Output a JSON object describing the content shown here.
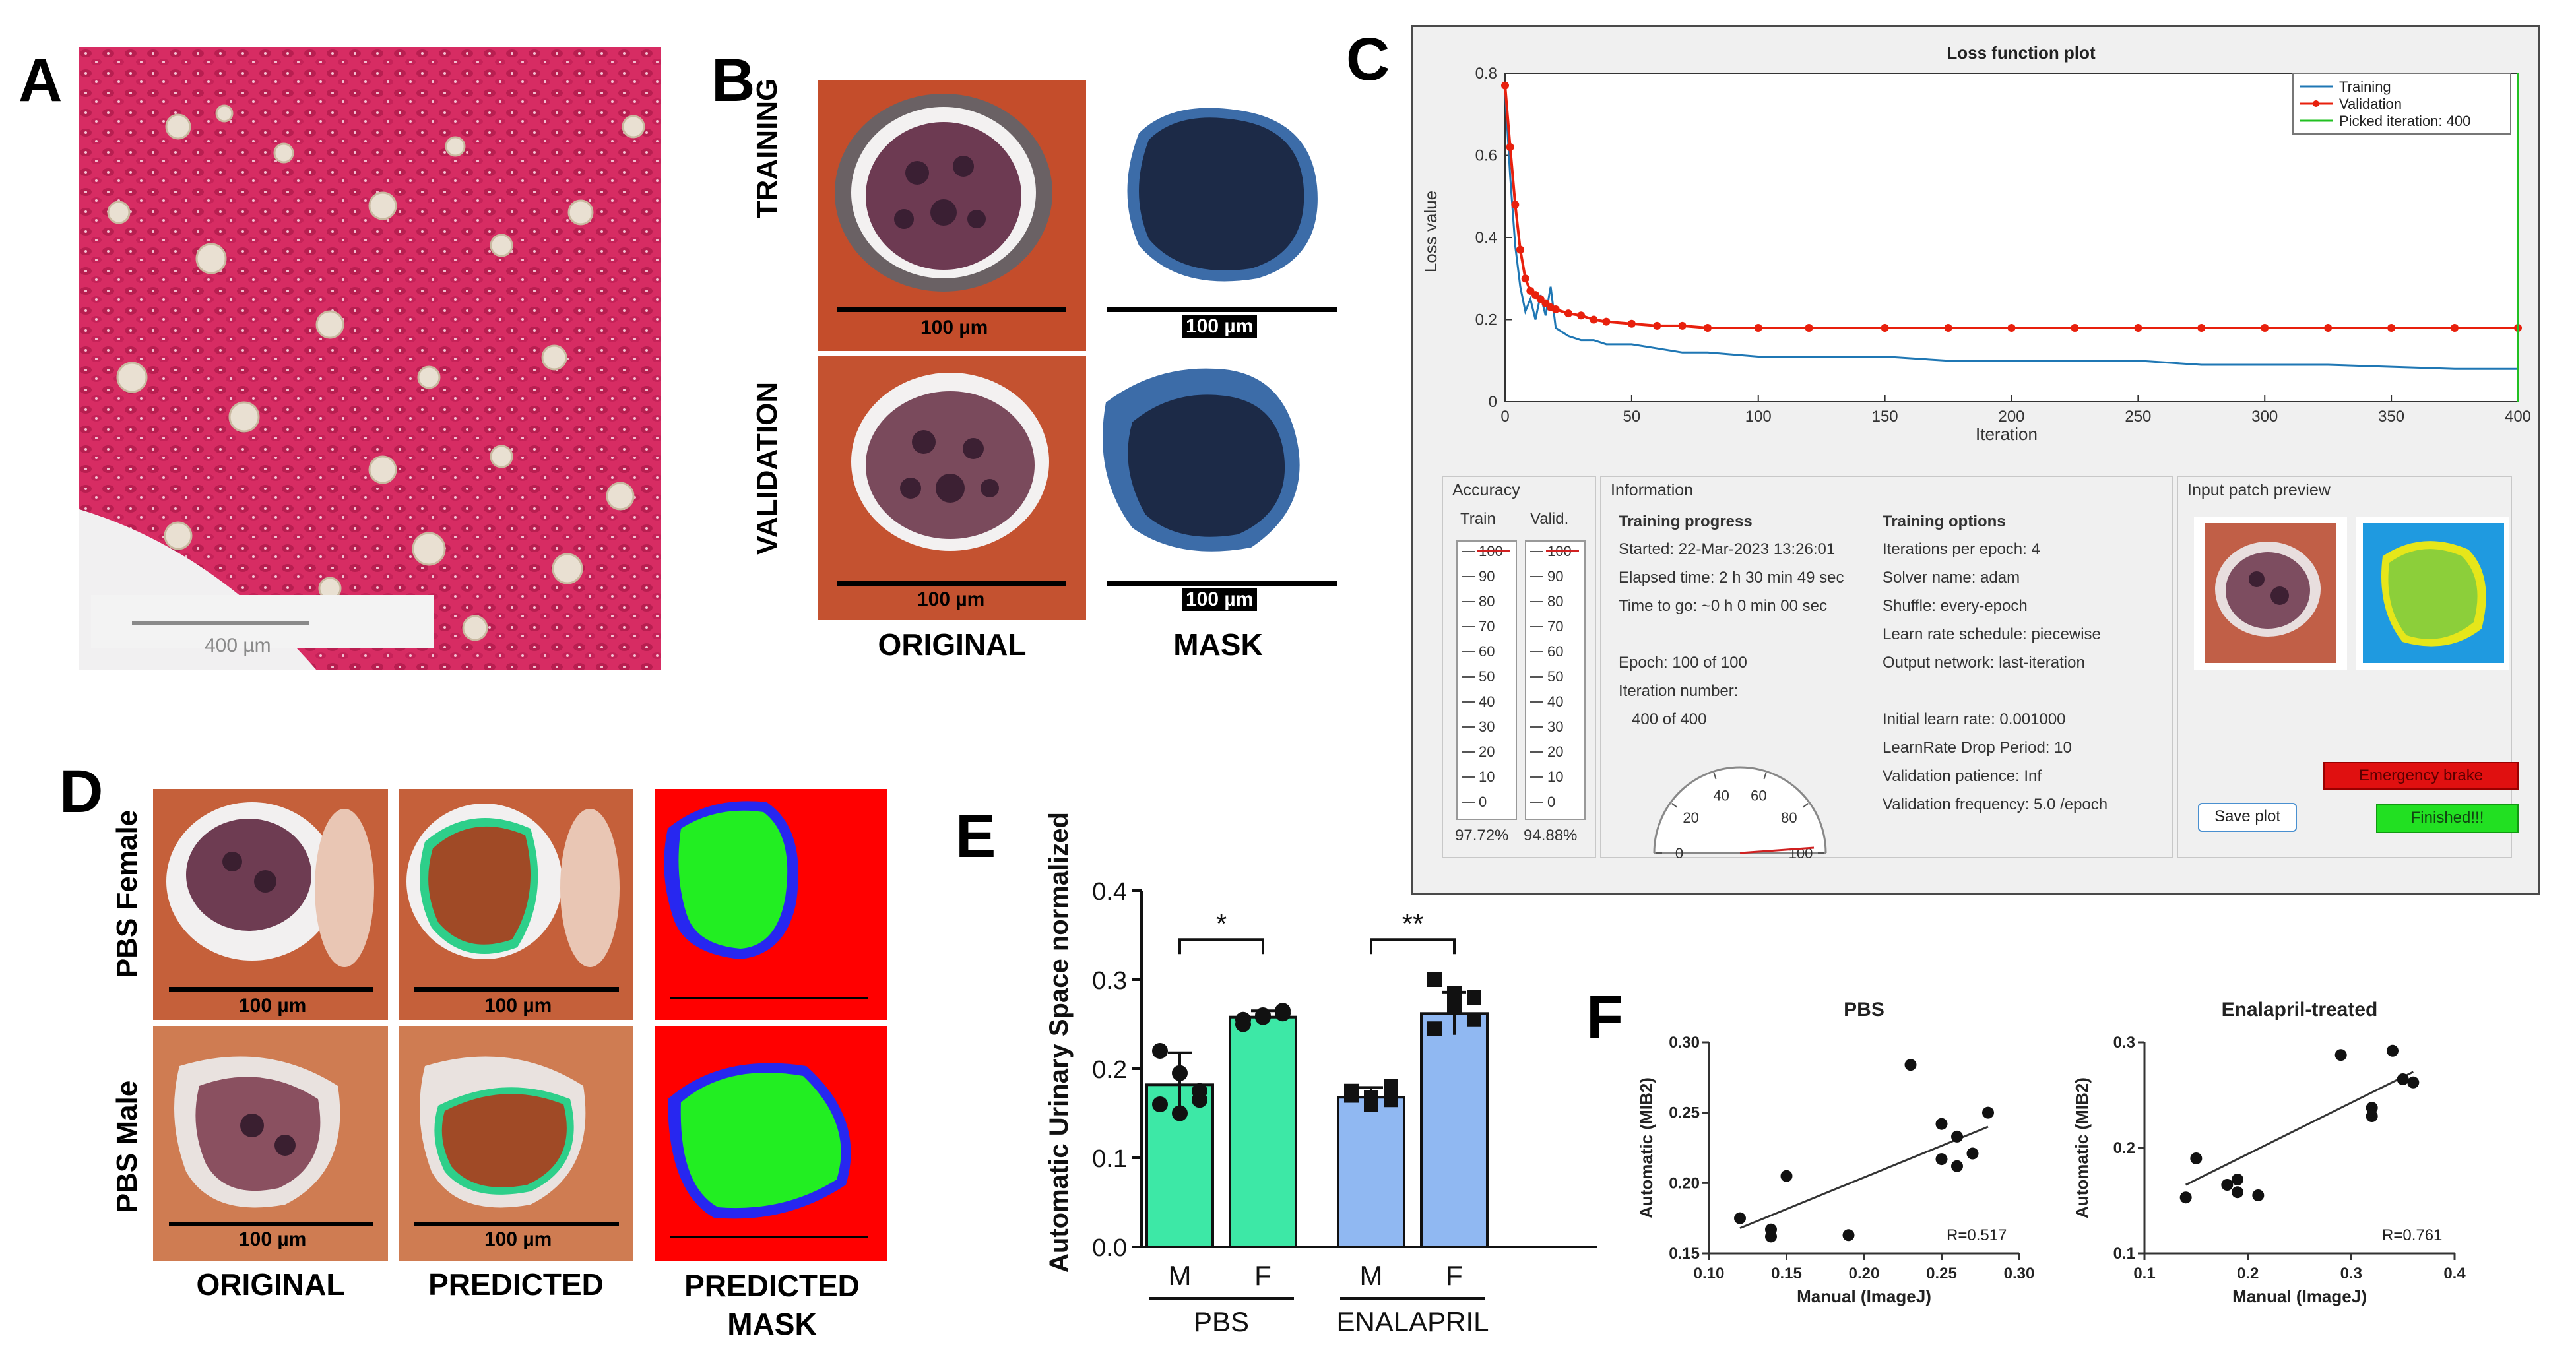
{
  "panels": {
    "A": {
      "label": "A",
      "scalebar_label": "400 µm"
    },
    "B": {
      "label": "B",
      "row_labels": [
        "TRAINING",
        "VALIDATION"
      ],
      "col_labels": [
        "ORIGINAL",
        "MASK"
      ],
      "scalebar_label": "100 µm"
    },
    "C": {
      "label": "C",
      "loss_plot": {
        "title": "Loss function plot",
        "legend": [
          "Training",
          "Validation",
          "Picked iteration: 400"
        ]
      },
      "accuracy": {
        "title": "Accuracy",
        "train_label": "Train",
        "valid_label": "Valid.",
        "gauge_ticks": [
          "100",
          "90",
          "80",
          "70",
          "60",
          "50",
          "40",
          "30",
          "20",
          "10",
          "0"
        ],
        "train_value": "97.72%",
        "valid_value": "94.88%"
      },
      "information": {
        "title": "Information",
        "progress_title": "Training progress",
        "progress_lines": [
          "Started: 22-Mar-2023 13:26:01",
          "Elapsed time: 2 h 30 min 49 sec",
          "Time to go: ~0 h 0 min 00 sec",
          "",
          "Epoch: 100 of 100",
          "Iteration number:",
          "   400 of 400"
        ],
        "options_title": "Training options",
        "options_lines": [
          "Iterations per epoch: 4",
          "Solver name: adam",
          "Shuffle: every-epoch",
          "Learn rate schedule: piecewise",
          "Output network: last-iteration",
          "",
          "Initial learn rate: 0.001000",
          "LearnRate Drop Period: 10",
          "Validation patience: Inf",
          "Validation frequency: 5.0 /epoch"
        ],
        "dial_ticks": [
          "0",
          "20",
          "40",
          "60",
          "80",
          "100"
        ]
      },
      "preview": {
        "title": "Input patch preview",
        "emergency_button": "Emergency brake",
        "save_button": "Save plot",
        "finished_button": "Finished!!!"
      }
    },
    "D": {
      "label": "D",
      "row_labels": [
        "PBS Female",
        "PBS Male"
      ],
      "col_labels": [
        "ORIGINAL",
        "PREDICTED",
        "PREDICTED MASK"
      ],
      "scalebar_label": "100 µm"
    },
    "E": {
      "label": "E"
    },
    "F": {
      "label": "F"
    }
  },
  "chart_data": [
    {
      "id": "C-loss",
      "type": "line",
      "title": "Loss function plot",
      "xlabel": "Iteration",
      "ylabel": "Loss value",
      "xlim": [
        0,
        400
      ],
      "ylim": [
        0,
        0.8
      ],
      "xticks": [
        0,
        50,
        100,
        150,
        200,
        250,
        300,
        350,
        400
      ],
      "yticks": [
        0,
        0.2,
        0.4,
        0.6,
        0.8
      ],
      "series": [
        {
          "name": "Training",
          "color": "#1f77b4",
          "x": [
            0,
            2,
            4,
            6,
            8,
            10,
            12,
            14,
            16,
            18,
            20,
            25,
            30,
            35,
            40,
            50,
            60,
            70,
            80,
            100,
            120,
            150,
            175,
            200,
            225,
            250,
            275,
            300,
            325,
            350,
            375,
            400
          ],
          "y": [
            0.76,
            0.55,
            0.38,
            0.28,
            0.22,
            0.25,
            0.2,
            0.26,
            0.21,
            0.28,
            0.18,
            0.16,
            0.15,
            0.15,
            0.14,
            0.14,
            0.13,
            0.12,
            0.12,
            0.11,
            0.11,
            0.11,
            0.1,
            0.1,
            0.1,
            0.1,
            0.09,
            0.09,
            0.09,
            0.085,
            0.08,
            0.08
          ]
        },
        {
          "name": "Validation",
          "color": "#e8200d",
          "x": [
            0,
            2,
            4,
            6,
            8,
            10,
            12,
            14,
            16,
            18,
            20,
            25,
            30,
            35,
            40,
            50,
            60,
            70,
            80,
            100,
            120,
            150,
            175,
            200,
            225,
            250,
            275,
            300,
            325,
            350,
            375,
            400
          ],
          "y": [
            0.77,
            0.62,
            0.48,
            0.37,
            0.3,
            0.27,
            0.26,
            0.25,
            0.24,
            0.23,
            0.225,
            0.215,
            0.21,
            0.2,
            0.195,
            0.19,
            0.185,
            0.185,
            0.18,
            0.18,
            0.18,
            0.18,
            0.18,
            0.18,
            0.18,
            0.18,
            0.18,
            0.18,
            0.18,
            0.18,
            0.18,
            0.18
          ]
        }
      ],
      "vline": {
        "name": "Picked iteration: 400",
        "x": 400,
        "color": "#22c022"
      }
    },
    {
      "id": "E",
      "type": "bar",
      "ylabel": "Automatic Urinary Space normalized",
      "ylim": [
        0,
        0.4
      ],
      "yticks": [
        "0.0",
        "0.1",
        "0.2",
        "0.3",
        "0.4"
      ],
      "categories": [
        "M",
        "F",
        "M",
        "F"
      ],
      "groups": [
        "PBS",
        "ENALAPRIL"
      ],
      "values": [
        0.182,
        0.258,
        0.168,
        0.262
      ],
      "errors": [
        0.036,
        0.007,
        0.011,
        0.024
      ],
      "colors": [
        "#3de8a6",
        "#3de8a6",
        "#90b8f2",
        "#90b8f2"
      ],
      "points": [
        [
          0.22,
          0.195,
          0.175,
          0.16,
          0.15,
          0.165
        ],
        [
          0.255,
          0.258,
          0.262,
          0.25,
          0.26,
          0.265
        ],
        [
          0.175,
          0.168,
          0.165,
          0.17,
          0.16,
          0.18
        ],
        [
          0.3,
          0.285,
          0.255,
          0.245,
          0.27,
          0.28
        ]
      ],
      "significance": [
        "*",
        "**"
      ]
    },
    {
      "id": "F-PBS",
      "type": "scatter",
      "title": "PBS",
      "xlabel": "Manual (ImageJ)",
      "ylabel": "Automatic (MIB2)",
      "xlim": [
        0.1,
        0.3
      ],
      "ylim": [
        0.15,
        0.3
      ],
      "xticks": [
        "0.10",
        "0.15",
        "0.20",
        "0.25",
        "0.30"
      ],
      "yticks": [
        "0.15",
        "0.20",
        "0.25",
        "0.30"
      ],
      "x": [
        0.12,
        0.14,
        0.14,
        0.15,
        0.19,
        0.23,
        0.25,
        0.25,
        0.26,
        0.26,
        0.27,
        0.28
      ],
      "y": [
        0.175,
        0.167,
        0.162,
        0.205,
        0.163,
        0.284,
        0.242,
        0.217,
        0.233,
        0.212,
        0.221,
        0.25
      ],
      "fit": [
        [
          0.12,
          0.168
        ],
        [
          0.28,
          0.24
        ]
      ],
      "annotation": "R=0.517"
    },
    {
      "id": "F-Enalapril",
      "type": "scatter",
      "title": "Enalapril-treated",
      "xlabel": "Manual (ImageJ)",
      "ylabel": "Automatic (MIB2)",
      "xlim": [
        0.1,
        0.4
      ],
      "ylim": [
        0.1,
        0.3
      ],
      "xticks": [
        "0.1",
        "0.2",
        "0.3",
        "0.4"
      ],
      "yticks": [
        "0.1",
        "0.2",
        "0.3"
      ],
      "x": [
        0.14,
        0.15,
        0.18,
        0.19,
        0.19,
        0.21,
        0.29,
        0.32,
        0.32,
        0.34,
        0.35,
        0.36
      ],
      "y": [
        0.153,
        0.19,
        0.165,
        0.17,
        0.158,
        0.155,
        0.288,
        0.238,
        0.23,
        0.292,
        0.265,
        0.262
      ],
      "fit": [
        [
          0.14,
          0.165
        ],
        [
          0.36,
          0.272
        ]
      ],
      "annotation": "R=0.761"
    }
  ]
}
